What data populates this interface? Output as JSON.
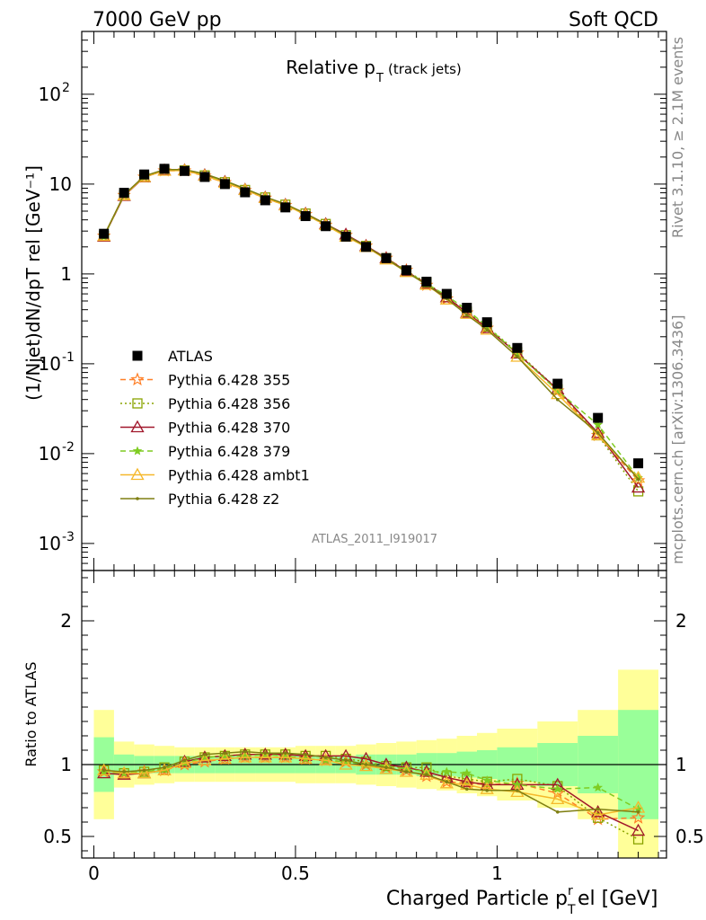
{
  "header": {
    "left": "7000 GeV pp",
    "right": "Soft QCD"
  },
  "side_labels": {
    "rivet": "Rivet 3.1.10, ≥ 2.1M events",
    "mcplots": "mcplots.cern.ch [arXiv:1306.3436]"
  },
  "colors": {
    "data": "#000000",
    "band_inner": "#99ff99",
    "band_outer": "#ffff99",
    "s355": "#ff7f27",
    "s356": "#8aa300",
    "s370": "#a1172b",
    "s379": "#7fcc22",
    "ambt1": "#f5b82b",
    "z2": "#7f7f12"
  },
  "chart_data": [
    {
      "type": "line",
      "title": "Relative p_T (track jets)",
      "title_main": "Relative p",
      "title_sub": "T",
      "title_extra": "(track jets)",
      "ylabel": "(1/Njet)dN/dp_T^rel [GeV^-1]",
      "yscale": "log",
      "ylim": [
        0.0005,
        500
      ],
      "xlim": [
        -0.03,
        1.42
      ],
      "yticks": [
        {
          "v": 0.001,
          "base": "10",
          "exp": "-3"
        },
        {
          "v": 0.01,
          "base": "10",
          "exp": "-2"
        },
        {
          "v": 0.1,
          "base": "10",
          "exp": "-1"
        },
        {
          "v": 1,
          "base": "1",
          "exp": ""
        },
        {
          "v": 10,
          "base": "10",
          "exp": ""
        },
        {
          "v": 100,
          "base": "10",
          "exp": "2"
        }
      ],
      "analysis_label": "ATLAS_2011_I919017",
      "x": [
        0.025,
        0.075,
        0.125,
        0.175,
        0.225,
        0.275,
        0.325,
        0.375,
        0.425,
        0.475,
        0.525,
        0.575,
        0.625,
        0.675,
        0.725,
        0.775,
        0.825,
        0.875,
        0.925,
        0.975,
        1.05,
        1.15,
        1.25,
        1.35
      ],
      "data": {
        "name": "ATLAS",
        "values": [
          2.8,
          8.0,
          12.8,
          14.8,
          14.0,
          12.0,
          10.0,
          8.1,
          6.6,
          5.5,
          4.4,
          3.4,
          2.6,
          2.0,
          1.5,
          1.1,
          0.82,
          0.6,
          0.42,
          0.29,
          0.15,
          0.06,
          0.025,
          0.0078
        ]
      },
      "series": [
        {
          "name": "Pythia 6.428 355",
          "style": "dashed",
          "marker": "star",
          "color_key": "s355",
          "values": [
            2.65,
            7.5,
            12.0,
            14.1,
            14.1,
            12.3,
            10.4,
            8.5,
            7.0,
            5.8,
            4.6,
            3.5,
            2.7,
            2.05,
            1.5,
            1.1,
            0.75,
            0.53,
            0.37,
            0.25,
            0.132,
            0.05,
            0.016,
            0.005
          ]
        },
        {
          "name": "Pythia 6.428 356",
          "style": "dotted",
          "marker": "square",
          "color_key": "s356",
          "values": [
            2.65,
            7.5,
            12.0,
            14.2,
            14.2,
            12.5,
            10.5,
            8.6,
            7.1,
            5.9,
            4.7,
            3.6,
            2.7,
            2.05,
            1.5,
            1.08,
            0.8,
            0.55,
            0.38,
            0.26,
            0.135,
            0.052,
            0.016,
            0.0038
          ]
        },
        {
          "name": "Pythia 6.428 370",
          "style": "solid",
          "marker": "triangle",
          "color_key": "s370",
          "values": [
            2.6,
            7.4,
            11.9,
            14.2,
            14.3,
            12.6,
            10.6,
            8.7,
            7.1,
            5.9,
            4.7,
            3.6,
            2.75,
            2.05,
            1.5,
            1.07,
            0.78,
            0.55,
            0.37,
            0.25,
            0.13,
            0.052,
            0.017,
            0.0042
          ]
        },
        {
          "name": "Pythia 6.428 379",
          "style": "dashed",
          "marker": "smallstar",
          "color_key": "s379",
          "values": [
            2.6,
            7.5,
            12.0,
            14.2,
            14.3,
            12.6,
            10.6,
            8.6,
            7.1,
            5.8,
            4.6,
            3.5,
            2.65,
            2.0,
            1.48,
            1.07,
            0.78,
            0.57,
            0.4,
            0.26,
            0.13,
            0.05,
            0.021,
            0.0054
          ]
        },
        {
          "name": "Pythia 6.428 ambt1",
          "style": "solid",
          "marker": "triangle",
          "color_key": "ambt1",
          "values": [
            2.65,
            7.5,
            12.0,
            14.1,
            14.2,
            12.4,
            10.4,
            8.6,
            7.0,
            5.8,
            4.6,
            3.5,
            2.6,
            2.0,
            1.45,
            1.05,
            0.76,
            0.52,
            0.36,
            0.24,
            0.12,
            0.046,
            0.016,
            0.0054
          ]
        },
        {
          "name": "Pythia 6.428 z2",
          "style": "solid",
          "marker": "dot",
          "color_key": "z2",
          "values": [
            2.65,
            7.6,
            12.3,
            14.5,
            14.5,
            13.0,
            10.9,
            8.9,
            7.2,
            6.0,
            4.7,
            3.6,
            2.7,
            2.03,
            1.48,
            1.05,
            0.76,
            0.53,
            0.35,
            0.24,
            0.12,
            0.04,
            0.017,
            0.0052
          ]
        }
      ]
    },
    {
      "type": "line",
      "ylabel": "Ratio to ATLAS",
      "ylim": [
        0.35,
        2.35
      ],
      "xlim": [
        -0.03,
        1.42
      ],
      "yticks": [
        {
          "v": 0.5,
          "label": "0.5"
        },
        {
          "v": 1,
          "label": "1"
        },
        {
          "v": 2,
          "label": "2"
        }
      ],
      "xticks": [
        {
          "v": 0,
          "label": "0"
        },
        {
          "v": 0.5,
          "label": "0.5"
        },
        {
          "v": 1,
          "label": "1"
        }
      ],
      "xlabel": "Charged Particle p_T^rel [GeV]",
      "xlabel_main": "Charged Particle p",
      "xlabel_sup": "r",
      "xlabel_sub": "T",
      "xlabel_tail": "el [GeV]",
      "bin_edges": [
        0,
        0.05,
        0.1,
        0.15,
        0.2,
        0.25,
        0.3,
        0.35,
        0.4,
        0.45,
        0.5,
        0.55,
        0.6,
        0.65,
        0.7,
        0.75,
        0.8,
        0.85,
        0.9,
        0.95,
        1.0,
        1.1,
        1.2,
        1.3,
        1.4
      ],
      "band_inner": [
        0.19,
        0.07,
        0.06,
        0.06,
        0.06,
        0.06,
        0.06,
        0.06,
        0.06,
        0.06,
        0.06,
        0.06,
        0.06,
        0.07,
        0.07,
        0.07,
        0.08,
        0.08,
        0.09,
        0.1,
        0.12,
        0.15,
        0.2,
        0.38
      ],
      "band_outer": [
        0.38,
        0.16,
        0.14,
        0.13,
        0.12,
        0.12,
        0.12,
        0.12,
        0.12,
        0.12,
        0.13,
        0.13,
        0.13,
        0.14,
        0.15,
        0.16,
        0.17,
        0.18,
        0.2,
        0.22,
        0.25,
        0.3,
        0.38,
        0.66
      ],
      "ratio_series": [
        {
          "color_key": "s355",
          "style": "dashed",
          "marker": "star",
          "values": [
            0.95,
            0.94,
            0.95,
            0.96,
            1.0,
            1.02,
            1.04,
            1.05,
            1.05,
            1.05,
            1.04,
            1.03,
            1.02,
            1.0,
            0.98,
            0.96,
            0.92,
            0.88,
            0.87,
            0.86,
            0.87,
            0.8,
            0.62,
            0.63
          ]
        },
        {
          "color_key": "s356",
          "style": "dotted",
          "marker": "square",
          "values": [
            0.96,
            0.94,
            0.95,
            0.98,
            1.02,
            1.05,
            1.06,
            1.07,
            1.07,
            1.07,
            1.06,
            1.06,
            1.04,
            1.02,
            0.99,
            0.98,
            0.98,
            0.92,
            0.9,
            0.88,
            0.9,
            0.85,
            0.63,
            0.48
          ]
        },
        {
          "color_key": "s370",
          "style": "solid",
          "marker": "triangle",
          "values": [
            0.94,
            0.93,
            0.94,
            0.96,
            1.02,
            1.05,
            1.06,
            1.07,
            1.07,
            1.07,
            1.06,
            1.06,
            1.06,
            1.04,
            1.0,
            0.98,
            0.95,
            0.91,
            0.88,
            0.86,
            0.86,
            0.86,
            0.67,
            0.54
          ]
        },
        {
          "color_key": "s379",
          "style": "dashed",
          "marker": "smallstar",
          "values": [
            0.95,
            0.94,
            0.95,
            0.97,
            1.01,
            1.05,
            1.06,
            1.06,
            1.07,
            1.06,
            1.04,
            1.03,
            1.02,
            1.0,
            0.99,
            0.97,
            0.95,
            0.95,
            0.94,
            0.89,
            0.86,
            0.83,
            0.84,
            0.69
          ]
        },
        {
          "color_key": "ambt1",
          "style": "solid",
          "marker": "triangle",
          "values": [
            0.96,
            0.94,
            0.94,
            0.96,
            1.01,
            1.03,
            1.04,
            1.05,
            1.05,
            1.05,
            1.04,
            1.03,
            1.0,
            0.99,
            0.97,
            0.95,
            0.93,
            0.87,
            0.86,
            0.83,
            0.81,
            0.76,
            0.65,
            0.7
          ]
        },
        {
          "color_key": "z2",
          "style": "solid",
          "marker": "dot",
          "values": [
            0.96,
            0.95,
            0.96,
            0.98,
            1.03,
            1.07,
            1.08,
            1.09,
            1.08,
            1.08,
            1.07,
            1.05,
            1.03,
            1.0,
            0.98,
            0.95,
            0.93,
            0.88,
            0.83,
            0.82,
            0.82,
            0.67,
            0.69,
            0.67
          ]
        }
      ]
    }
  ]
}
